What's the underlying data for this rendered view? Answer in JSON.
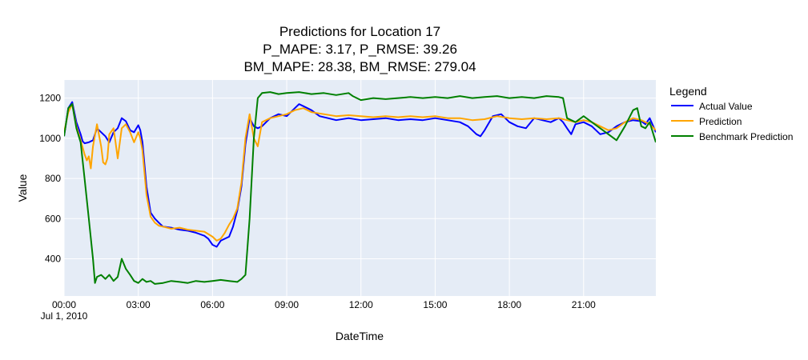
{
  "chart_data": {
    "type": "line",
    "title_lines": [
      "Predictions for Location 17",
      "P_MAPE: 3.17, P_RMSE: 39.26",
      "BM_MAPE: 28.38, BM_RMSE: 279.04"
    ],
    "xlabel": "DateTime",
    "ylabel": "Value",
    "x_date_label": "Jul 1, 2010",
    "x_ticks": [
      {
        "hour": 0,
        "label": "00:00"
      },
      {
        "hour": 3,
        "label": "03:00"
      },
      {
        "hour": 6,
        "label": "06:00"
      },
      {
        "hour": 9,
        "label": "09:00"
      },
      {
        "hour": 12,
        "label": "12:00"
      },
      {
        "hour": 15,
        "label": "15:00"
      },
      {
        "hour": 18,
        "label": "18:00"
      },
      {
        "hour": 21,
        "label": "21:00"
      }
    ],
    "y_ticks": [
      400,
      600,
      800,
      1000,
      1200
    ],
    "xlim_hours": [
      0,
      23.92
    ],
    "ylim": [
      215,
      1290
    ],
    "grid": true,
    "legend": {
      "title": "Legend",
      "position": "right"
    },
    "series": [
      {
        "name": "Actual Value",
        "color": "#0000ff",
        "points": [
          [
            0.0,
            1010
          ],
          [
            0.17,
            1150
          ],
          [
            0.33,
            1180
          ],
          [
            0.5,
            1080
          ],
          [
            0.67,
            1020
          ],
          [
            0.75,
            985
          ],
          [
            0.83,
            975
          ],
          [
            1.0,
            980
          ],
          [
            1.17,
            990
          ],
          [
            1.33,
            1050
          ],
          [
            1.5,
            1030
          ],
          [
            1.67,
            1010
          ],
          [
            1.83,
            980
          ],
          [
            2.0,
            1030
          ],
          [
            2.17,
            1050
          ],
          [
            2.33,
            1100
          ],
          [
            2.5,
            1085
          ],
          [
            2.67,
            1040
          ],
          [
            2.83,
            1030
          ],
          [
            3.0,
            1065
          ],
          [
            3.08,
            1040
          ],
          [
            3.17,
            980
          ],
          [
            3.33,
            760
          ],
          [
            3.5,
            630
          ],
          [
            3.67,
            600
          ],
          [
            3.83,
            580
          ],
          [
            4.0,
            560
          ],
          [
            4.33,
            555
          ],
          [
            4.67,
            545
          ],
          [
            5.0,
            540
          ],
          [
            5.33,
            530
          ],
          [
            5.67,
            515
          ],
          [
            5.83,
            500
          ],
          [
            6.0,
            470
          ],
          [
            6.17,
            460
          ],
          [
            6.33,
            490
          ],
          [
            6.5,
            500
          ],
          [
            6.67,
            510
          ],
          [
            6.83,
            560
          ],
          [
            7.0,
            640
          ],
          [
            7.17,
            760
          ],
          [
            7.33,
            970
          ],
          [
            7.5,
            1100
          ],
          [
            7.67,
            1060
          ],
          [
            7.83,
            1050
          ],
          [
            8.0,
            1060
          ],
          [
            8.33,
            1100
          ],
          [
            8.67,
            1120
          ],
          [
            9.0,
            1110
          ],
          [
            9.33,
            1150
          ],
          [
            9.5,
            1170
          ],
          [
            9.67,
            1160
          ],
          [
            10.0,
            1140
          ],
          [
            10.33,
            1110
          ],
          [
            10.67,
            1100
          ],
          [
            11.0,
            1090
          ],
          [
            11.5,
            1100
          ],
          [
            12.0,
            1090
          ],
          [
            12.5,
            1095
          ],
          [
            13.0,
            1100
          ],
          [
            13.5,
            1090
          ],
          [
            14.0,
            1095
          ],
          [
            14.5,
            1090
          ],
          [
            15.0,
            1100
          ],
          [
            15.5,
            1090
          ],
          [
            16.0,
            1080
          ],
          [
            16.33,
            1060
          ],
          [
            16.67,
            1020
          ],
          [
            16.83,
            1010
          ],
          [
            17.0,
            1040
          ],
          [
            17.33,
            1110
          ],
          [
            17.67,
            1120
          ],
          [
            18.0,
            1080
          ],
          [
            18.33,
            1060
          ],
          [
            18.67,
            1050
          ],
          [
            19.0,
            1100
          ],
          [
            19.33,
            1090
          ],
          [
            19.67,
            1080
          ],
          [
            20.0,
            1100
          ],
          [
            20.17,
            1080
          ],
          [
            20.33,
            1050
          ],
          [
            20.5,
            1020
          ],
          [
            20.67,
            1070
          ],
          [
            21.0,
            1080
          ],
          [
            21.33,
            1060
          ],
          [
            21.67,
            1020
          ],
          [
            22.0,
            1030
          ],
          [
            22.33,
            1060
          ],
          [
            22.67,
            1080
          ],
          [
            23.0,
            1090
          ],
          [
            23.33,
            1085
          ],
          [
            23.5,
            1070
          ],
          [
            23.67,
            1100
          ],
          [
            23.92,
            1030
          ]
        ]
      },
      {
        "name": "Prediction",
        "color": "#ffa500",
        "points": [
          [
            0.0,
            1030
          ],
          [
            0.17,
            1130
          ],
          [
            0.33,
            1170
          ],
          [
            0.5,
            1060
          ],
          [
            0.67,
            990
          ],
          [
            0.83,
            920
          ],
          [
            0.92,
            890
          ],
          [
            1.0,
            910
          ],
          [
            1.08,
            850
          ],
          [
            1.17,
            960
          ],
          [
            1.33,
            1070
          ],
          [
            1.5,
            960
          ],
          [
            1.58,
            880
          ],
          [
            1.67,
            870
          ],
          [
            1.75,
            900
          ],
          [
            1.83,
            1020
          ],
          [
            2.0,
            1050
          ],
          [
            2.08,
            980
          ],
          [
            2.17,
            900
          ],
          [
            2.33,
            1050
          ],
          [
            2.5,
            1070
          ],
          [
            2.67,
            1030
          ],
          [
            2.83,
            980
          ],
          [
            3.0,
            1030
          ],
          [
            3.08,
            1000
          ],
          [
            3.17,
            940
          ],
          [
            3.33,
            720
          ],
          [
            3.5,
            610
          ],
          [
            3.67,
            580
          ],
          [
            3.83,
            565
          ],
          [
            4.0,
            560
          ],
          [
            4.33,
            550
          ],
          [
            4.67,
            555
          ],
          [
            5.0,
            545
          ],
          [
            5.33,
            540
          ],
          [
            5.67,
            535
          ],
          [
            6.0,
            510
          ],
          [
            6.17,
            490
          ],
          [
            6.33,
            500
          ],
          [
            6.5,
            530
          ],
          [
            6.67,
            570
          ],
          [
            6.83,
            600
          ],
          [
            7.0,
            650
          ],
          [
            7.17,
            780
          ],
          [
            7.33,
            1000
          ],
          [
            7.5,
            1120
          ],
          [
            7.67,
            1000
          ],
          [
            7.83,
            960
          ],
          [
            8.0,
            1080
          ],
          [
            8.33,
            1100
          ],
          [
            8.67,
            1110
          ],
          [
            9.0,
            1120
          ],
          [
            9.33,
            1140
          ],
          [
            9.67,
            1150
          ],
          [
            10.0,
            1130
          ],
          [
            10.5,
            1120
          ],
          [
            11.0,
            1110
          ],
          [
            11.5,
            1115
          ],
          [
            12.0,
            1110
          ],
          [
            12.5,
            1105
          ],
          [
            13.0,
            1110
          ],
          [
            13.5,
            1105
          ],
          [
            14.0,
            1110
          ],
          [
            14.5,
            1105
          ],
          [
            15.0,
            1110
          ],
          [
            15.5,
            1100
          ],
          [
            16.0,
            1100
          ],
          [
            16.5,
            1090
          ],
          [
            17.0,
            1095
          ],
          [
            17.5,
            1110
          ],
          [
            18.0,
            1100
          ],
          [
            18.5,
            1095
          ],
          [
            19.0,
            1100
          ],
          [
            19.5,
            1095
          ],
          [
            20.0,
            1100
          ],
          [
            20.33,
            1090
          ],
          [
            20.67,
            1080
          ],
          [
            21.0,
            1090
          ],
          [
            21.33,
            1080
          ],
          [
            21.67,
            1060
          ],
          [
            22.0,
            1040
          ],
          [
            22.33,
            1050
          ],
          [
            22.67,
            1080
          ],
          [
            23.0,
            1100
          ],
          [
            23.33,
            1090
          ],
          [
            23.67,
            1070
          ],
          [
            23.92,
            1040
          ]
        ]
      },
      {
        "name": "Benchmark Prediction",
        "color": "#008000",
        "points": [
          [
            0.0,
            1010
          ],
          [
            0.17,
            1150
          ],
          [
            0.33,
            1170
          ],
          [
            0.5,
            1050
          ],
          [
            0.67,
            980
          ],
          [
            0.83,
            800
          ],
          [
            1.0,
            600
          ],
          [
            1.17,
            400
          ],
          [
            1.25,
            280
          ],
          [
            1.33,
            310
          ],
          [
            1.5,
            320
          ],
          [
            1.67,
            300
          ],
          [
            1.83,
            320
          ],
          [
            2.0,
            290
          ],
          [
            2.17,
            310
          ],
          [
            2.33,
            400
          ],
          [
            2.5,
            350
          ],
          [
            2.67,
            320
          ],
          [
            2.83,
            290
          ],
          [
            3.0,
            280
          ],
          [
            3.17,
            300
          ],
          [
            3.33,
            285
          ],
          [
            3.5,
            290
          ],
          [
            3.67,
            275
          ],
          [
            4.0,
            280
          ],
          [
            4.33,
            290
          ],
          [
            4.67,
            285
          ],
          [
            5.0,
            280
          ],
          [
            5.33,
            290
          ],
          [
            5.67,
            285
          ],
          [
            6.0,
            290
          ],
          [
            6.33,
            295
          ],
          [
            6.67,
            290
          ],
          [
            7.0,
            285
          ],
          [
            7.17,
            300
          ],
          [
            7.33,
            320
          ],
          [
            7.5,
            600
          ],
          [
            7.67,
            1000
          ],
          [
            7.83,
            1200
          ],
          [
            8.0,
            1225
          ],
          [
            8.33,
            1230
          ],
          [
            8.67,
            1220
          ],
          [
            9.0,
            1225
          ],
          [
            9.5,
            1230
          ],
          [
            10.0,
            1220
          ],
          [
            10.5,
            1225
          ],
          [
            11.0,
            1215
          ],
          [
            11.5,
            1225
          ],
          [
            11.67,
            1210
          ],
          [
            12.0,
            1190
          ],
          [
            12.5,
            1200
          ],
          [
            13.0,
            1195
          ],
          [
            13.5,
            1200
          ],
          [
            14.0,
            1205
          ],
          [
            14.5,
            1200
          ],
          [
            15.0,
            1205
          ],
          [
            15.5,
            1200
          ],
          [
            16.0,
            1210
          ],
          [
            16.5,
            1200
          ],
          [
            17.0,
            1205
          ],
          [
            17.5,
            1210
          ],
          [
            18.0,
            1200
          ],
          [
            18.5,
            1205
          ],
          [
            19.0,
            1200
          ],
          [
            19.5,
            1210
          ],
          [
            20.0,
            1205
          ],
          [
            20.17,
            1200
          ],
          [
            20.33,
            1100
          ],
          [
            20.67,
            1080
          ],
          [
            21.0,
            1110
          ],
          [
            21.33,
            1080
          ],
          [
            21.67,
            1050
          ],
          [
            22.0,
            1020
          ],
          [
            22.33,
            990
          ],
          [
            22.67,
            1060
          ],
          [
            23.0,
            1140
          ],
          [
            23.17,
            1150
          ],
          [
            23.33,
            1060
          ],
          [
            23.5,
            1050
          ],
          [
            23.67,
            1080
          ],
          [
            23.92,
            980
          ]
        ]
      }
    ]
  }
}
